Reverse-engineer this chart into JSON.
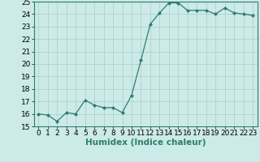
{
  "x": [
    0,
    1,
    2,
    3,
    4,
    5,
    6,
    7,
    8,
    9,
    10,
    11,
    12,
    13,
    14,
    15,
    16,
    17,
    18,
    19,
    20,
    21,
    22,
    23
  ],
  "y": [
    16.0,
    15.9,
    15.4,
    16.1,
    16.0,
    17.1,
    16.7,
    16.5,
    16.5,
    16.1,
    17.5,
    20.3,
    23.2,
    24.1,
    24.9,
    24.9,
    24.3,
    24.3,
    24.3,
    24.0,
    24.5,
    24.1,
    24.0,
    23.9
  ],
  "line_color": "#2e7d6e",
  "marker": "D",
  "marker_size": 2.0,
  "bg_color": "#cceae7",
  "grid_color": "#aaccca",
  "xlabel": "Humidex (Indice chaleur)",
  "ylim": [
    15,
    25
  ],
  "xlim": [
    -0.5,
    23.5
  ],
  "yticks": [
    15,
    16,
    17,
    18,
    19,
    20,
    21,
    22,
    23,
    24,
    25
  ],
  "xticks": [
    0,
    1,
    2,
    3,
    4,
    5,
    6,
    7,
    8,
    9,
    10,
    11,
    12,
    13,
    14,
    15,
    16,
    17,
    18,
    19,
    20,
    21,
    22,
    23
  ],
  "xlabel_fontsize": 7.5,
  "tick_fontsize": 6.5,
  "line_width": 0.9
}
